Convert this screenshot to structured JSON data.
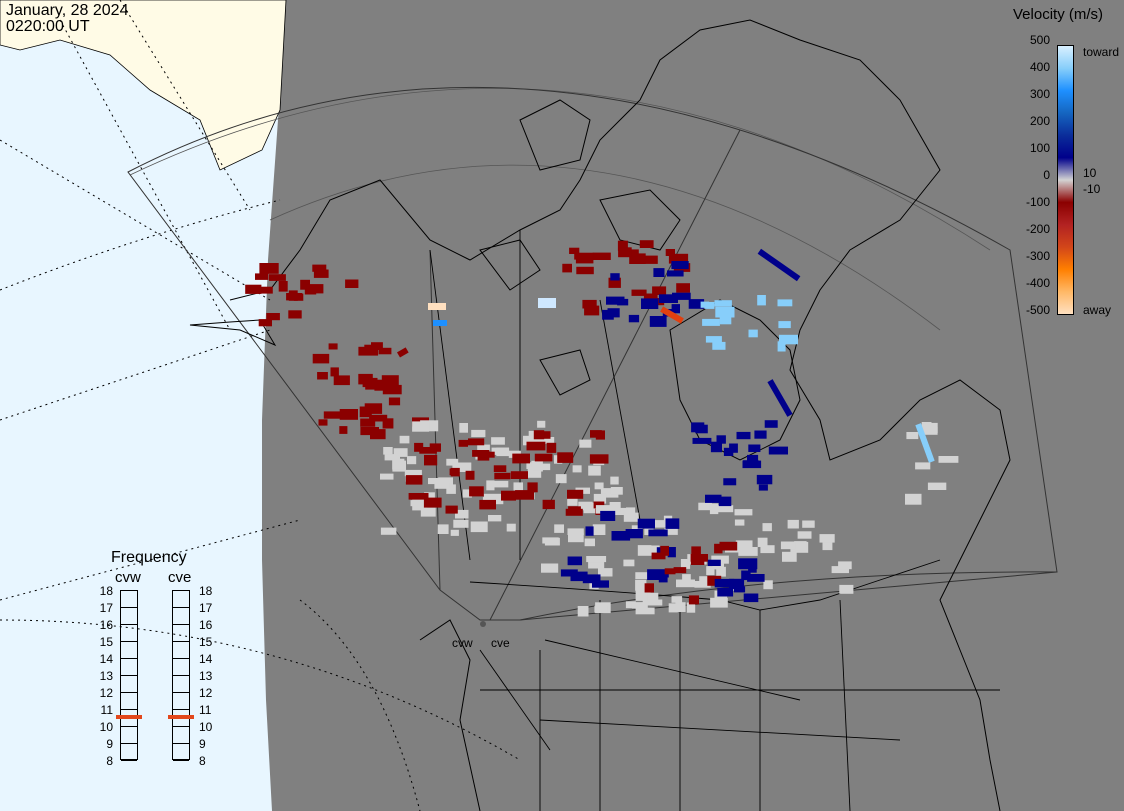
{
  "header": {
    "date": "January, 28 2024",
    "time": "0220:00 UT"
  },
  "colorbar": {
    "title": "Velocity (m/s)",
    "ticks": [
      "500",
      "400",
      "300",
      "200",
      "100",
      "0",
      "-100",
      "-200",
      "-300",
      "-400",
      "-500"
    ],
    "side_labels": {
      "toward": "toward",
      "small_pos": "10",
      "small_neg": "-10",
      "away": "away"
    },
    "colors": {
      "toward_max": "#d9f0ff",
      "toward_mid": "#1e90ff",
      "toward_low": "#00008b",
      "ground_scatter": "#d3d3d3",
      "away_low": "#8b0000",
      "away_mid": "#ff7f00",
      "away_max": "#ffe0c0"
    }
  },
  "frequency_panel": {
    "title": "Frequency",
    "radars": [
      "cvw",
      "cve"
    ],
    "scale": [
      "18",
      "17",
      "16",
      "15",
      "14",
      "13",
      "12",
      "11",
      "10",
      "9",
      "8"
    ],
    "current_mhz": [
      11,
      11
    ],
    "marker_color": "#e2471c"
  },
  "map": {
    "projection": "polar view centered on North America",
    "background_day": "#e8f6ff",
    "background_land_day": "#fffbe6",
    "background_night": "#808080",
    "radar_sites": [
      "cvw",
      "cve"
    ],
    "boundaries": [
      "coastlines",
      "country borders",
      "US states",
      "Canadian provinces"
    ],
    "overlays": [
      "radar field-of-view outlines",
      "latitude/longitude grid"
    ]
  }
}
